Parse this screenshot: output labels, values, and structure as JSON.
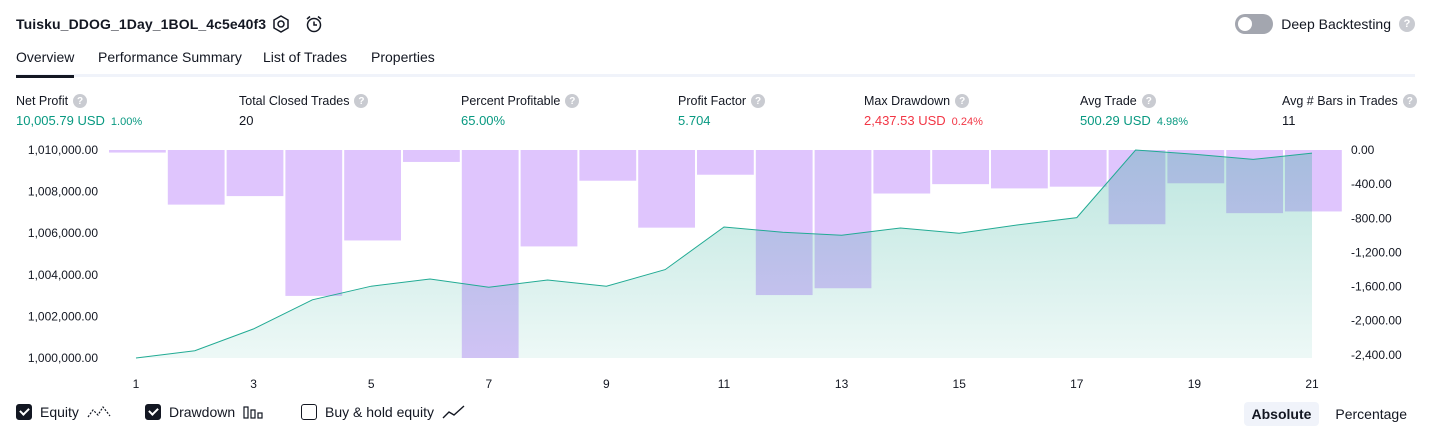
{
  "header": {
    "title": "Tuisku_DDOG_1Day_1BOL_4c5e40f3",
    "deep_backtesting_label": "Deep Backtesting",
    "help_glyph": "?"
  },
  "tabs": [
    {
      "label": "Overview",
      "active": true
    },
    {
      "label": "Performance Summary",
      "active": false
    },
    {
      "label": "List of Trades",
      "active": false
    },
    {
      "label": "Properties",
      "active": false
    }
  ],
  "metrics": [
    {
      "label": "Net Profit",
      "value": "10,005.79 USD",
      "pct": "1.00%",
      "tone": "green"
    },
    {
      "label": "Total Closed Trades",
      "value": "20",
      "pct": "",
      "tone": "neutral"
    },
    {
      "label": "Percent Profitable",
      "value": "65.00%",
      "pct": "",
      "tone": "green"
    },
    {
      "label": "Profit Factor",
      "value": "5.704",
      "pct": "",
      "tone": "green"
    },
    {
      "label": "Max Drawdown",
      "value": "2,437.53 USD",
      "pct": "0.24%",
      "tone": "red"
    },
    {
      "label": "Avg Trade",
      "value": "500.29 USD",
      "pct": "4.98%",
      "tone": "green"
    },
    {
      "label": "Avg # Bars in Trades",
      "value": "11",
      "pct": "",
      "tone": "neutral"
    }
  ],
  "chart_data": {
    "type": "area",
    "x": [
      1,
      2,
      3,
      4,
      5,
      6,
      7,
      8,
      9,
      10,
      11,
      12,
      13,
      14,
      15,
      16,
      17,
      18,
      19,
      20,
      21
    ],
    "x_tick_labels": [
      "1",
      "3",
      "5",
      "7",
      "9",
      "11",
      "13",
      "15",
      "17",
      "19",
      "21"
    ],
    "y_left_tick_labels": [
      "1,010,000.00",
      "1,008,000.00",
      "1,006,000.00",
      "1,004,000.00",
      "1,002,000.00",
      "1,000,000.00"
    ],
    "y_left_range": [
      1000000,
      1010000
    ],
    "y_right_tick_labels": [
      "0.00",
      "-400.00",
      "-800.00",
      "-1,200.00",
      "-1,600.00",
      "-2,000.00",
      "-2,400.00"
    ],
    "y_right_range": [
      -2437.53,
      0
    ],
    "series": [
      {
        "name": "Equity",
        "type": "area",
        "axis": "left",
        "color": "#22ab94",
        "values": [
          1000000,
          1000350,
          1001400,
          1002800,
          1003450,
          1003800,
          1003400,
          1003750,
          1003450,
          1004250,
          1006300,
          1006050,
          1005900,
          1006250,
          1006000,
          1006400,
          1006750,
          1010000,
          1009800,
          1009550,
          1009850
        ]
      },
      {
        "name": "Drawdown",
        "type": "bar",
        "axis": "right",
        "color": "#c99efc",
        "values": [
          -30,
          -640,
          -540,
          -1710,
          -1060,
          -140,
          -2437.53,
          -1130,
          -360,
          -910,
          -290,
          -1700,
          -1620,
          -510,
          -400,
          -450,
          -430,
          -870,
          -390,
          -740,
          -720
        ]
      }
    ],
    "grid": false,
    "legend": "bottom-left"
  },
  "footer": {
    "equity_label": "Equity",
    "drawdown_label": "Drawdown",
    "buyhold_label": "Buy & hold equity",
    "absolute_label": "Absolute",
    "percentage_label": "Percentage"
  }
}
